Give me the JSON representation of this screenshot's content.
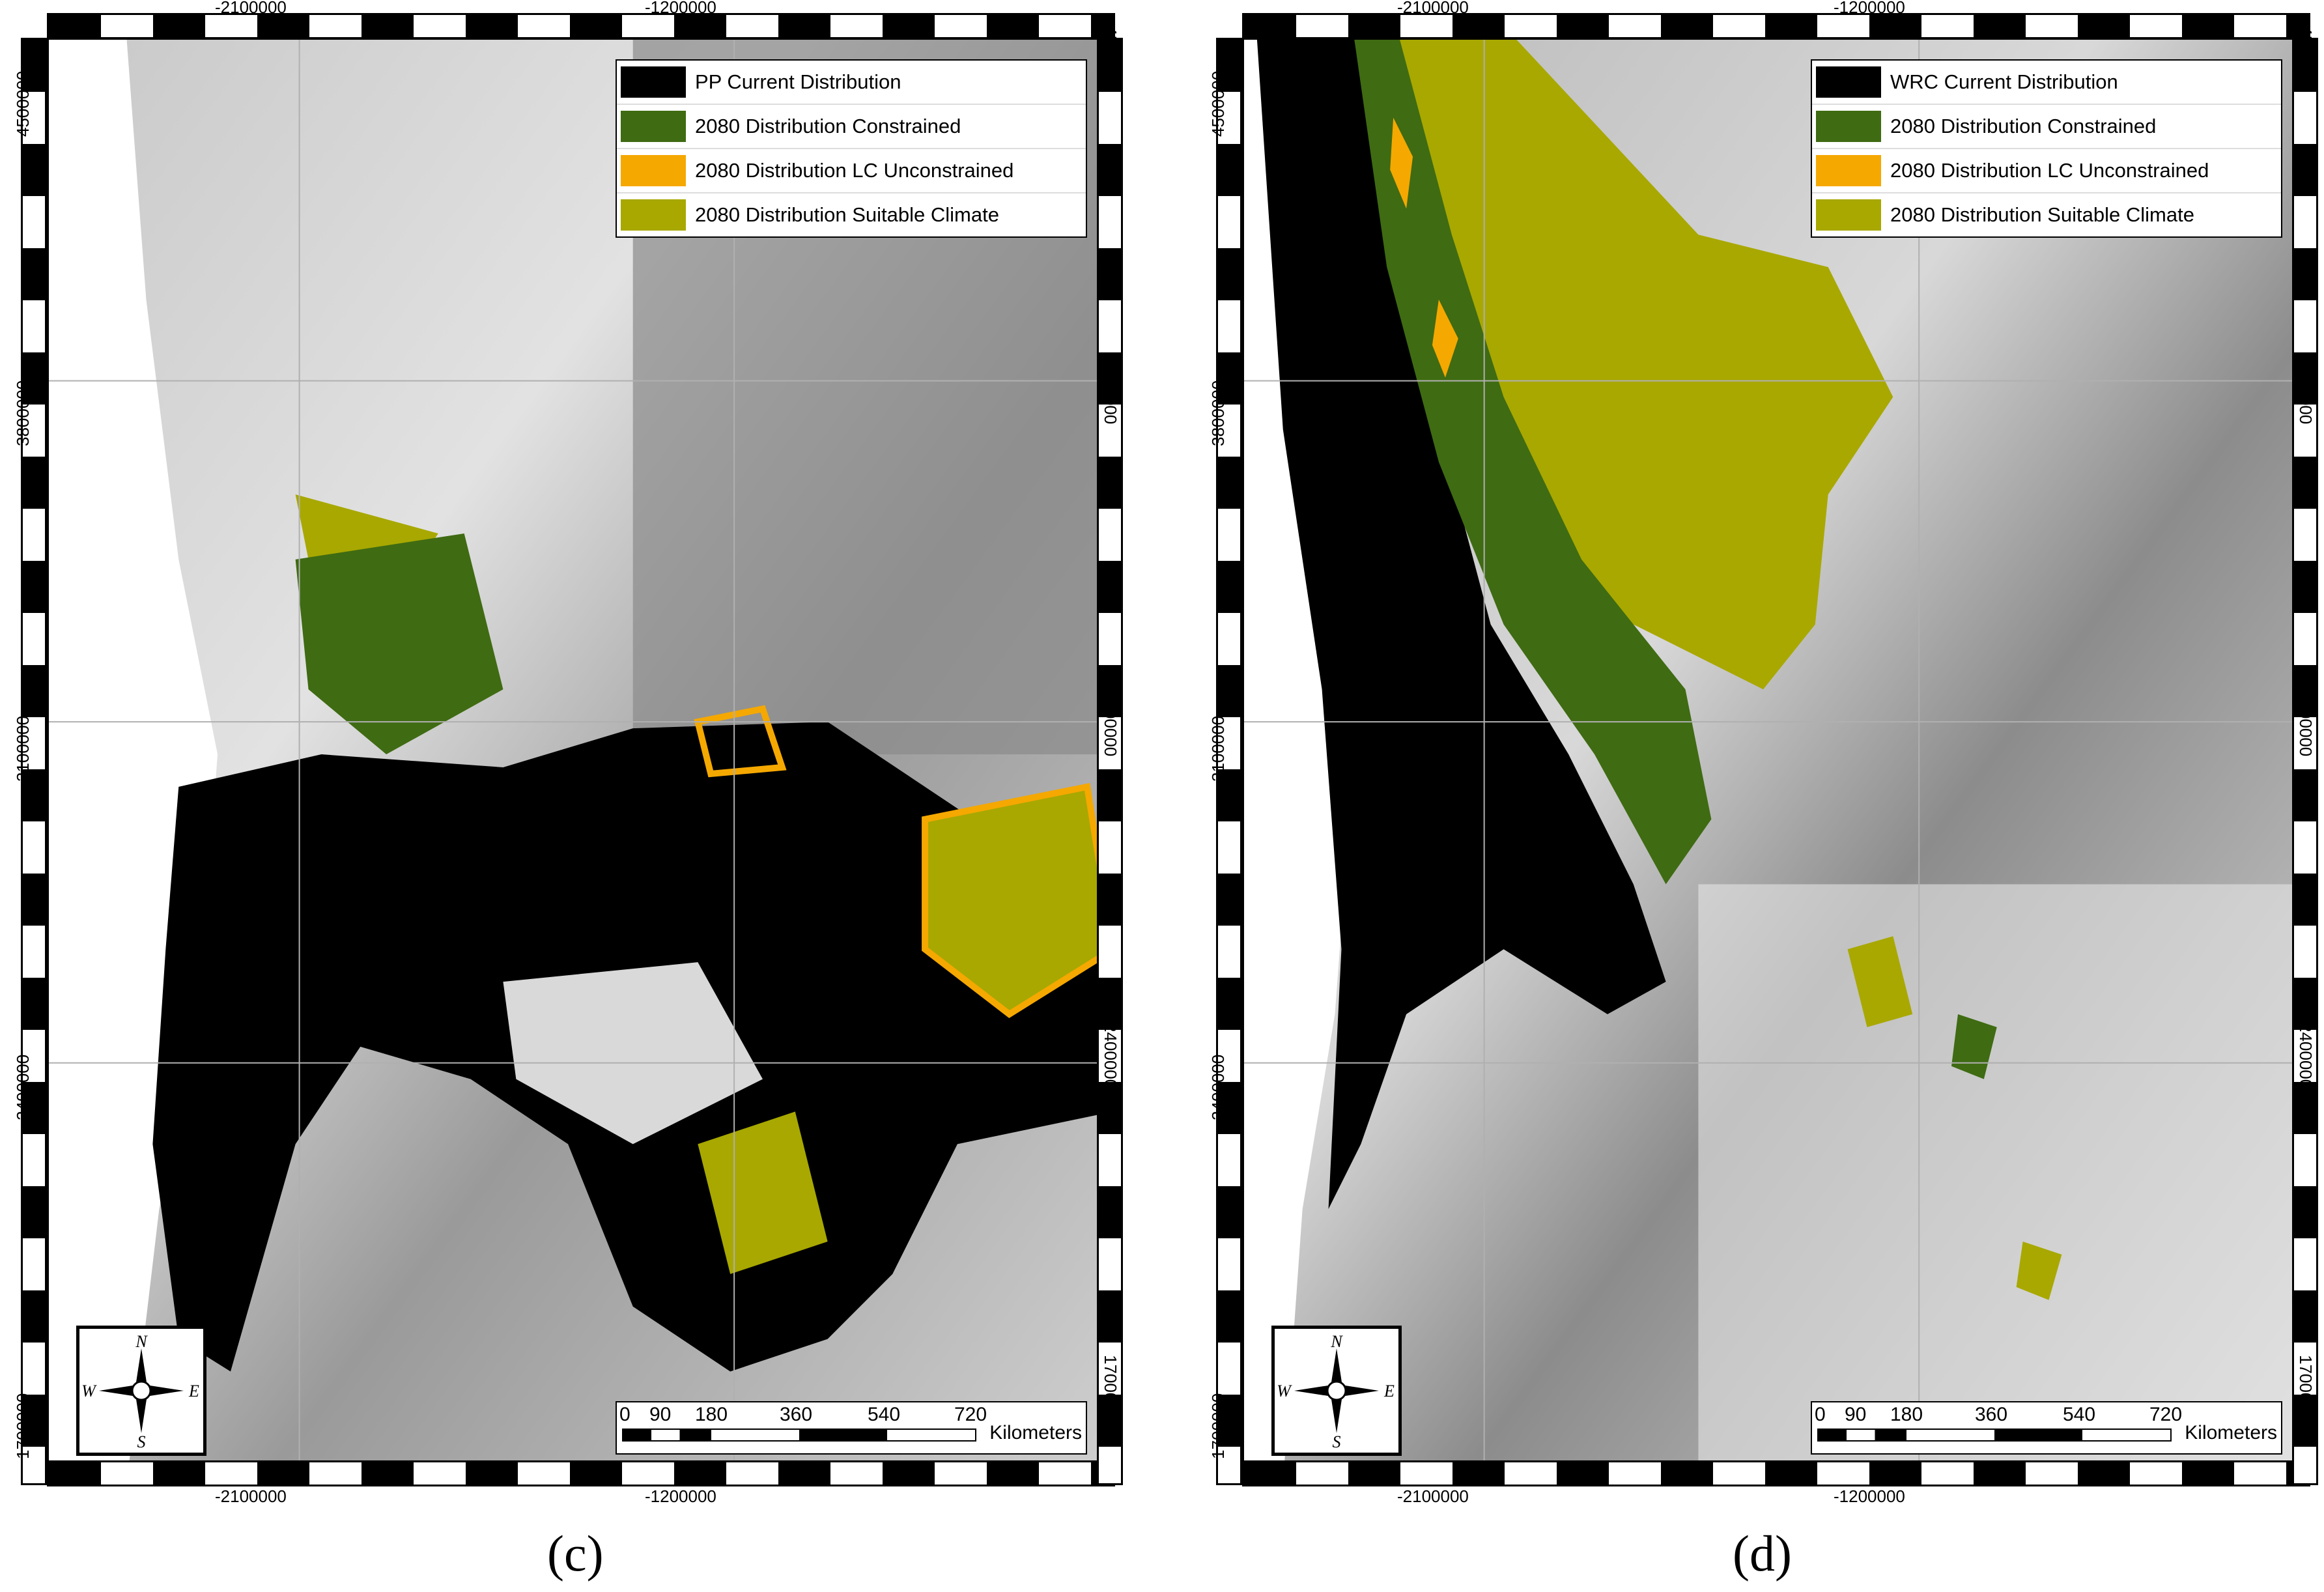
{
  "panels": [
    {
      "id": "c",
      "label": "(c)",
      "legend": [
        {
          "label": "PP Current Distribution",
          "color": "#000000"
        },
        {
          "label": "2080 Distribution Constrained",
          "color": "#3f6b12"
        },
        {
          "label": "2080 Distribution LC Unconstrained",
          "color": "#f5a800"
        },
        {
          "label": "2080 Distribution Suitable Climate",
          "color": "#a8a800"
        }
      ],
      "x_ticks": [
        "-2100000",
        "-1200000"
      ],
      "y_ticks": [
        "4500000",
        "3800000",
        "3100000",
        "2400000",
        "1700000"
      ]
    },
    {
      "id": "d",
      "label": "(d)",
      "legend": [
        {
          "label": "WRC Current Distribution",
          "color": "#000000"
        },
        {
          "label": "2080 Distribution Constrained",
          "color": "#3f6b12"
        },
        {
          "label": "2080 Distribution LC Unconstrained",
          "color": "#f5a800"
        },
        {
          "label": "2080 Distribution Suitable Climate",
          "color": "#a8a800"
        }
      ],
      "x_ticks": [
        "-2100000",
        "-1200000"
      ],
      "y_ticks": [
        "4500000",
        "3800000",
        "3100000",
        "2400000",
        "1700000"
      ]
    }
  ],
  "compass": {
    "n": "N",
    "s": "S",
    "e": "E",
    "w": "W",
    "icon": "north-arrow-icon"
  },
  "scale": {
    "ticks": [
      "0",
      "90",
      "180",
      "360",
      "540",
      "720"
    ],
    "unit": "Kilometers"
  },
  "colors": {
    "terrain_light": "#e6e6e6",
    "terrain_dark": "#7a7a7a",
    "water": "#ffffff"
  }
}
